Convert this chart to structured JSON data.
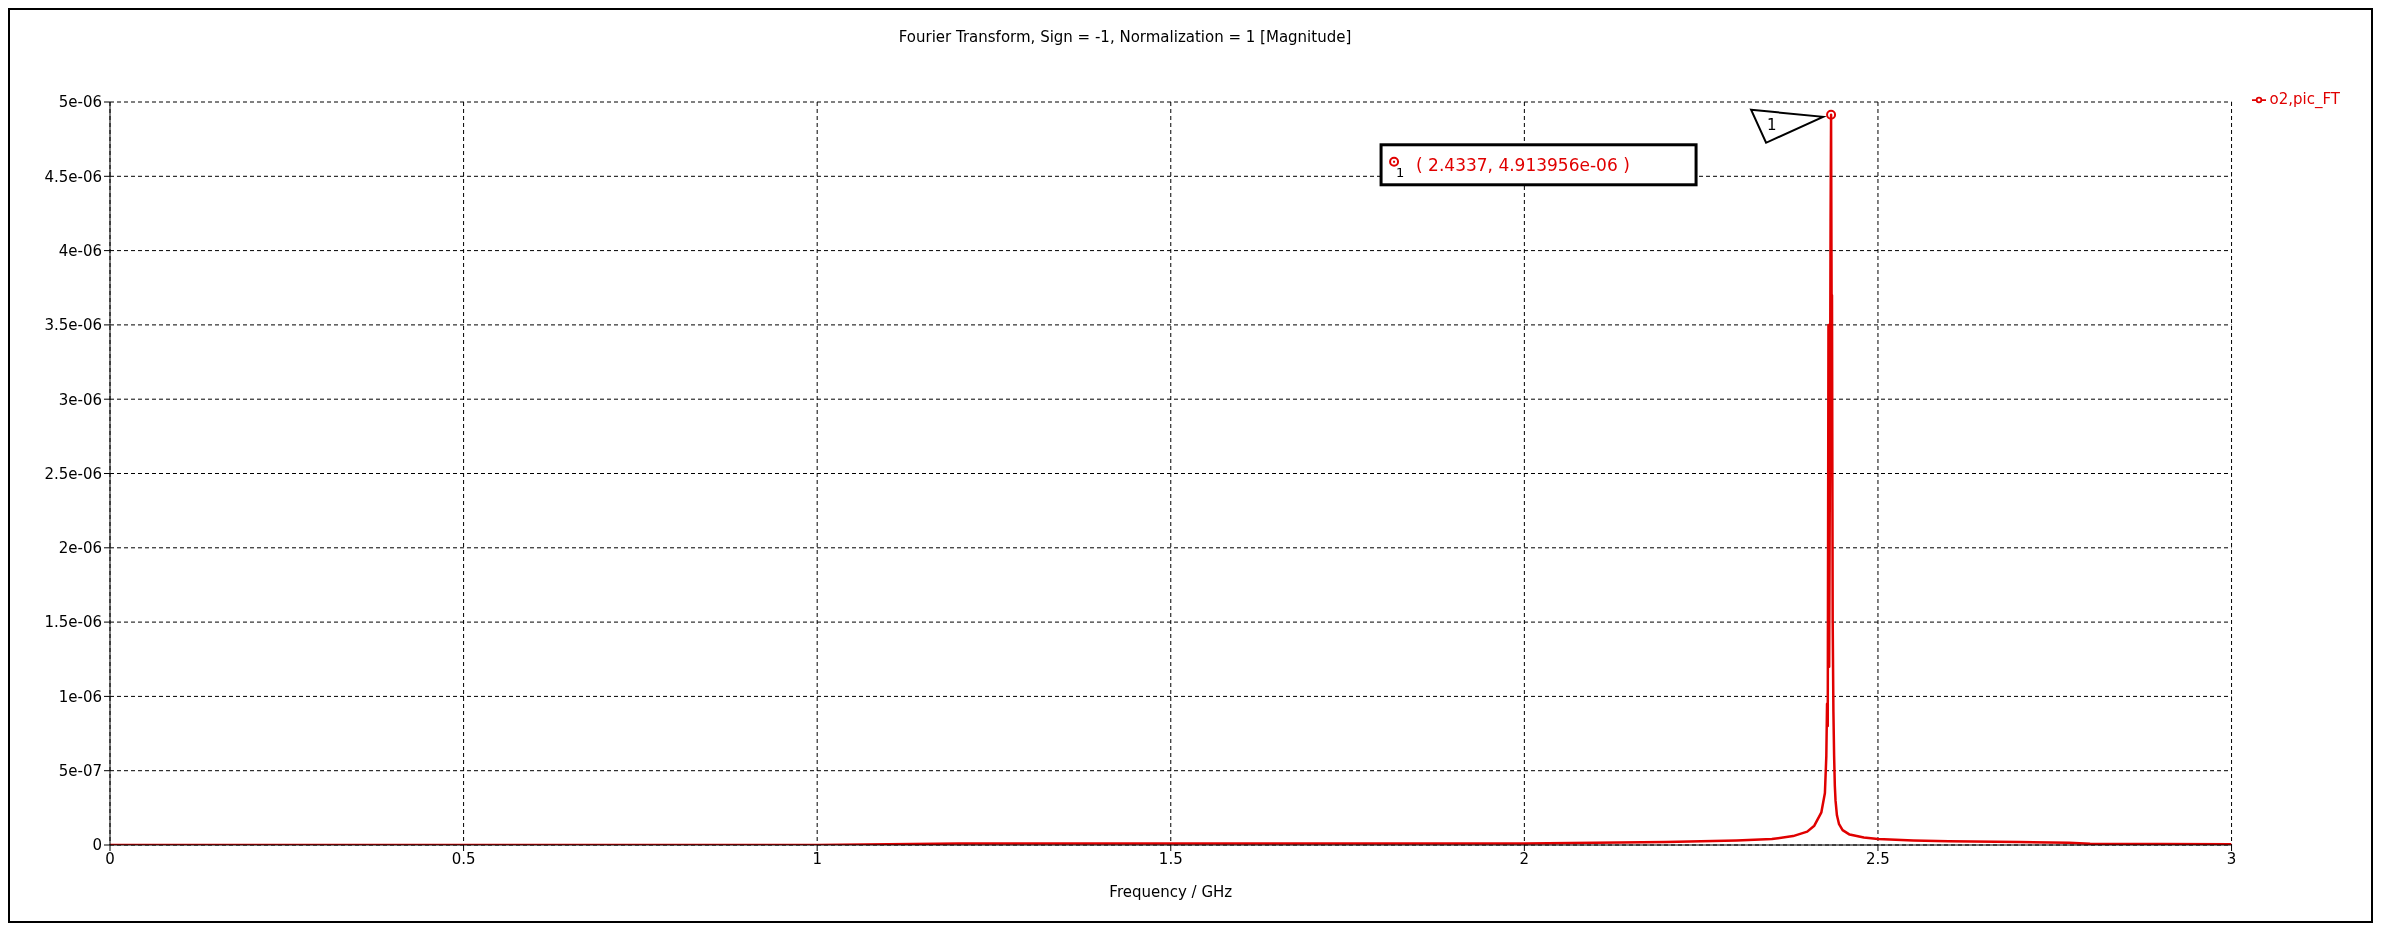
{
  "chart_data": {
    "type": "line",
    "title": "Fourier Transform, Sign = -1, Normalization = 1 [Magnitude]",
    "xlabel": "Frequency / GHz",
    "x": [
      0,
      0.5,
      1,
      1.2,
      1.5,
      1.8,
      2.0,
      2.1,
      2.2,
      2.3,
      2.35,
      2.38,
      2.4,
      2.41,
      2.42,
      2.425,
      2.427,
      2.428,
      2.429,
      2.43,
      2.431,
      2.432,
      2.433,
      2.4337,
      2.4345,
      2.435,
      2.436,
      2.437,
      2.438,
      2.439,
      2.44,
      2.442,
      2.445,
      2.45,
      2.46,
      2.48,
      2.5,
      2.55,
      2.6,
      2.7,
      2.77,
      2.8,
      2.9,
      3.0
    ],
    "series": [
      {
        "name": "o2,pic_FT",
        "color": "#e00000",
        "values": [
          0,
          0,
          0,
          1e-08,
          1e-08,
          1e-08,
          1e-08,
          1.5e-08,
          2e-08,
          3e-08,
          4e-08,
          6e-08,
          9e-08,
          1.3e-07,
          2.2e-07,
          3.5e-07,
          6e-07,
          9.5e-07,
          8e-07,
          3.5e-06,
          1.2e-06,
          2.5e-06,
          4.2e-06,
          4.913956e-06,
          3.6e-06,
          3.7e-06,
          1.5e-06,
          9e-07,
          6e-07,
          4e-07,
          3e-07,
          2e-07,
          1.4e-07,
          1e-07,
          7e-08,
          5e-08,
          4e-08,
          3e-08,
          2.5e-08,
          2e-08,
          1.5e-08,
          8e-09,
          6e-09,
          5e-09
        ]
      }
    ],
    "xlim": [
      0,
      3
    ],
    "xticks": [
      0,
      0.5,
      1,
      1.5,
      2,
      2.5,
      3
    ],
    "ylim": [
      0,
      5e-06
    ],
    "yticks": [
      {
        "value": 0,
        "label": "0"
      },
      {
        "value": 5e-07,
        "label": "5e-07"
      },
      {
        "value": 1e-06,
        "label": "1e-06"
      },
      {
        "value": 1.5e-06,
        "label": "1.5e-06"
      },
      {
        "value": 2e-06,
        "label": "2e-06"
      },
      {
        "value": 2.5e-06,
        "label": "2.5e-06"
      },
      {
        "value": 3e-06,
        "label": "3e-06"
      },
      {
        "value": 3.5e-06,
        "label": "3.5e-06"
      },
      {
        "value": 4e-06,
        "label": "4e-06"
      },
      {
        "value": 4.5e-06,
        "label": "4.5e-06"
      },
      {
        "value": 5e-06,
        "label": "5e-06"
      }
    ],
    "grid": true,
    "legend": "top right",
    "marker": "none",
    "line_style": "solid",
    "annotations": [
      "1",
      "( 2.4337, 4.913956e-06 )"
    ]
  }
}
